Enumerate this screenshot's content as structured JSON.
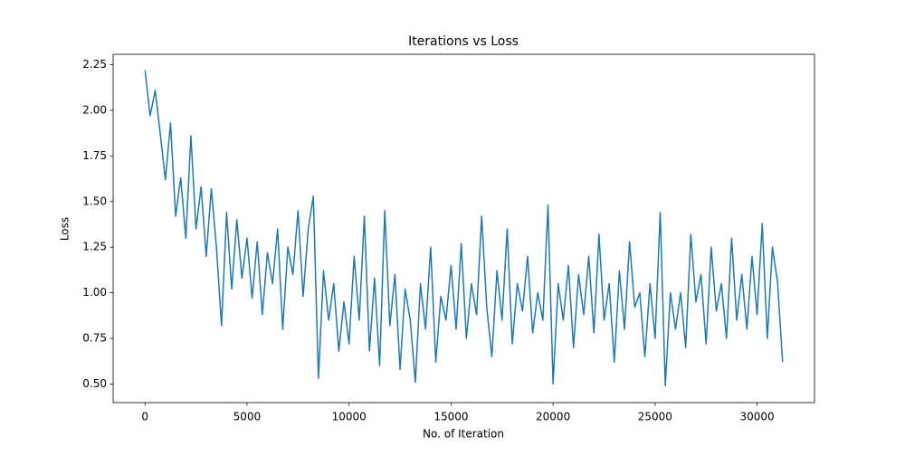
{
  "chart_data": {
    "type": "line",
    "title": "Iterations vs Loss",
    "x_label": "No. of Iteration",
    "y_label": "Loss",
    "color": "#1f77b4",
    "grid": false,
    "x": [
      0,
      250,
      500,
      750,
      1000,
      1250,
      1500,
      1750,
      2000,
      2250,
      2500,
      2750,
      3000,
      3250,
      3500,
      3750,
      4000,
      4250,
      4500,
      4750,
      5000,
      5250,
      5500,
      5750,
      6000,
      6250,
      6500,
      6750,
      7000,
      7250,
      7500,
      7750,
      8000,
      8250,
      8500,
      8750,
      9000,
      9250,
      9500,
      9750,
      10000,
      10250,
      10500,
      10750,
      11000,
      11250,
      11500,
      11750,
      12000,
      12250,
      12500,
      12750,
      13000,
      13250,
      13500,
      13750,
      14000,
      14250,
      14500,
      14750,
      15000,
      15250,
      15500,
      15750,
      16000,
      16250,
      16500,
      16750,
      17000,
      17250,
      17500,
      17750,
      18000,
      18250,
      18500,
      18750,
      19000,
      19250,
      19500,
      19750,
      20000,
      20250,
      20500,
      20750,
      21000,
      21250,
      21500,
      21750,
      22000,
      22250,
      22500,
      22750,
      23000,
      23250,
      23500,
      23750,
      24000,
      24250,
      24500,
      24750,
      25000,
      25250,
      25500,
      25750,
      26000,
      26250,
      26500,
      26750,
      27000,
      27250,
      27500,
      27750,
      28000,
      28250,
      28500,
      28750,
      29000,
      29250,
      29500,
      29750,
      30000,
      30250,
      30500,
      30750,
      31000,
      31250
    ],
    "values": [
      2.22,
      1.97,
      2.11,
      1.87,
      1.62,
      1.93,
      1.42,
      1.63,
      1.3,
      1.86,
      1.35,
      1.58,
      1.2,
      1.57,
      1.25,
      0.82,
      1.44,
      1.02,
      1.4,
      1.08,
      1.3,
      0.97,
      1.28,
      0.88,
      1.22,
      1.05,
      1.35,
      0.8,
      1.25,
      1.1,
      1.45,
      0.98,
      1.35,
      1.53,
      0.53,
      1.12,
      0.85,
      1.05,
      0.68,
      0.95,
      0.72,
      1.2,
      0.85,
      1.42,
      0.68,
      1.08,
      0.6,
      1.45,
      0.82,
      1.1,
      0.58,
      1.02,
      0.85,
      0.51,
      1.05,
      0.8,
      1.25,
      0.62,
      0.98,
      0.85,
      1.15,
      0.8,
      1.27,
      0.75,
      1.05,
      0.88,
      1.42,
      0.92,
      0.65,
      1.12,
      0.85,
      1.35,
      0.72,
      1.05,
      0.9,
      1.2,
      0.78,
      1.0,
      0.85,
      1.48,
      0.5,
      1.05,
      0.85,
      1.15,
      0.7,
      1.1,
      0.88,
      1.2,
      0.78,
      1.32,
      0.85,
      1.05,
      0.62,
      1.12,
      0.8,
      1.28,
      0.92,
      1.0,
      0.65,
      1.05,
      0.75,
      1.44,
      0.49,
      1.0,
      0.8,
      1.0,
      0.7,
      1.32,
      0.95,
      1.1,
      0.72,
      1.25,
      0.9,
      1.05,
      0.75,
      1.3,
      0.85,
      1.1,
      0.8,
      1.2,
      0.88,
      1.38,
      0.75,
      1.25,
      1.06,
      0.62
    ],
    "xlim": [
      -1562.5,
      32812.5
    ],
    "xticks": [
      0,
      5000,
      10000,
      15000,
      20000,
      25000,
      30000
    ],
    "ylim": [
      0.398,
      2.307
    ],
    "yticks": [
      {
        "value": 0.5,
        "label": "0.50"
      },
      0.75,
      {
        "value": 1.0,
        "label": "1.00"
      },
      1.25,
      {
        "value": 1.5,
        "label": "1.50"
      },
      1.75,
      {
        "value": 2.0,
        "label": "2.00"
      },
      2.25
    ]
  }
}
